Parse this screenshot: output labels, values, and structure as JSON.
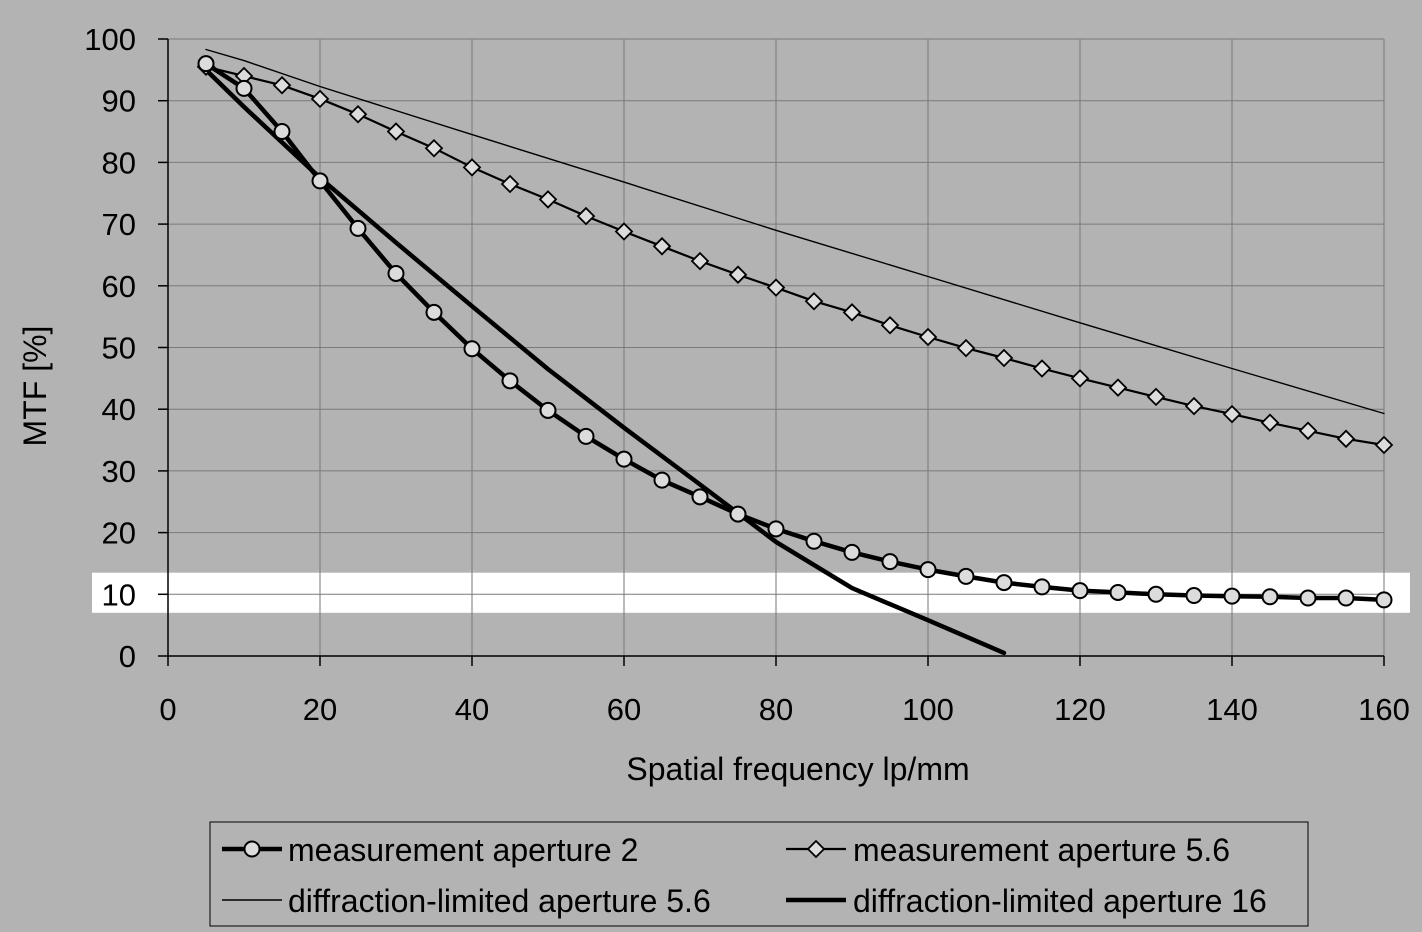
{
  "chart_data": {
    "type": "line",
    "xlabel": "Spatial frequency  lp/mm",
    "ylabel": "MTF  [%]",
    "xlim": [
      0,
      160
    ],
    "ylim": [
      0,
      100
    ],
    "xticks": [
      0,
      20,
      40,
      60,
      80,
      100,
      120,
      140,
      160
    ],
    "yticks": [
      0,
      10,
      20,
      30,
      40,
      50,
      60,
      70,
      80,
      90,
      100
    ],
    "grid": true,
    "legend_position": "bottom",
    "highlight_band": [
      7,
      13.5
    ],
    "colors": {
      "background": "#b3b3b3",
      "grid": "#7a7a7a",
      "line": "#000000",
      "marker_fill": "#dcdcdc",
      "highlight": "#ffffff"
    },
    "series": [
      {
        "name": "measurement aperture 2",
        "marker": "circle",
        "line_weight": "thick",
        "x": [
          5,
          10,
          15,
          20,
          25,
          30,
          35,
          40,
          45,
          50,
          55,
          60,
          65,
          70,
          75,
          80,
          85,
          90,
          95,
          100,
          105,
          110,
          115,
          120,
          125,
          130,
          135,
          140,
          145,
          150,
          155,
          160
        ],
        "values": [
          96,
          92,
          85,
          77,
          69.3,
          62,
          55.7,
          49.8,
          44.6,
          39.8,
          35.6,
          31.9,
          28.5,
          25.8,
          23,
          20.6,
          18.6,
          16.8,
          15.3,
          14,
          12.9,
          11.9,
          11.2,
          10.6,
          10.3,
          10,
          9.8,
          9.7,
          9.6,
          9.4,
          9.4,
          9.1
        ]
      },
      {
        "name": "measurement aperture 5.6",
        "marker": "diamond",
        "line_weight": "medium",
        "x": [
          5,
          10,
          15,
          20,
          25,
          30,
          35,
          40,
          45,
          50,
          55,
          60,
          65,
          70,
          75,
          80,
          85,
          90,
          95,
          100,
          105,
          110,
          115,
          120,
          125,
          130,
          135,
          140,
          145,
          150,
          155,
          160
        ],
        "values": [
          95.5,
          94,
          92.5,
          90.3,
          87.8,
          85,
          82.3,
          79.2,
          76.5,
          74,
          71.3,
          68.8,
          66.4,
          64,
          61.8,
          59.7,
          57.5,
          55.7,
          53.6,
          51.7,
          49.9,
          48.3,
          46.6,
          45,
          43.5,
          42,
          40.5,
          39.2,
          37.8,
          36.5,
          35.2,
          34.2
        ]
      },
      {
        "name": "diffraction-limited aperture 5.6",
        "marker": "none",
        "line_weight": "thin",
        "x": [
          5,
          10,
          20,
          40,
          60,
          80,
          100,
          120,
          140,
          160
        ],
        "values": [
          98.3,
          96.5,
          92.3,
          84.5,
          76.8,
          69,
          61.5,
          54,
          46.6,
          39.3
        ]
      },
      {
        "name": "diffraction-limited aperture 16",
        "marker": "none",
        "line_weight": "thick",
        "x": [
          5,
          10,
          20,
          30,
          40,
          50,
          60,
          70,
          80,
          90,
          100,
          110
        ],
        "values": [
          95,
          89,
          77.5,
          67,
          56.7,
          46.5,
          37,
          27.8,
          18.5,
          11,
          5.8,
          0.5
        ]
      }
    ]
  }
}
